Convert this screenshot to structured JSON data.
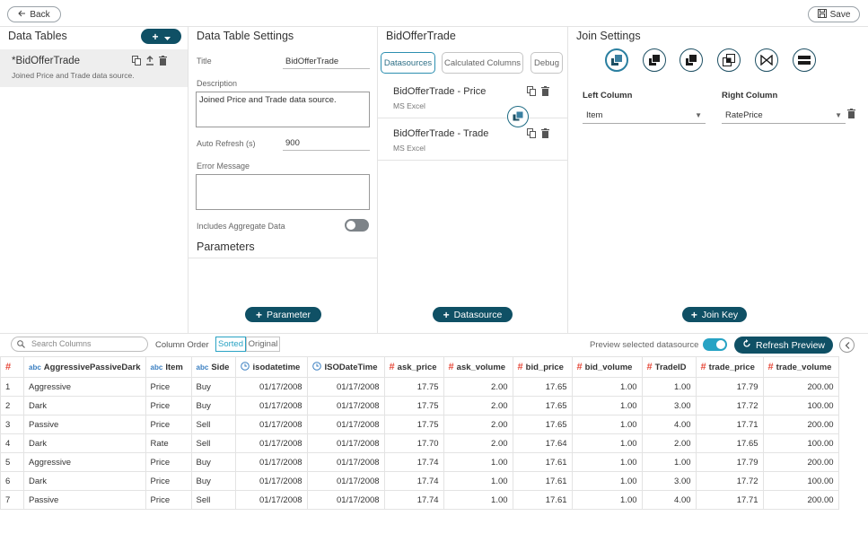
{
  "topbar": {
    "back_label": "Back",
    "save_label": "Save"
  },
  "data_tables": {
    "title": "Data Tables",
    "items": [
      {
        "name": "*BidOfferTrade",
        "description": "Joined Price and Trade data source."
      }
    ]
  },
  "settings": {
    "title": "Data Table Settings",
    "title_label": "Title",
    "title_value": "BidOfferTrade",
    "description_label": "Description",
    "description_value": "Joined Price and Trade data source.",
    "auto_refresh_label": "Auto Refresh (s)",
    "auto_refresh_value": "900",
    "error_label": "Error Message",
    "error_value": "",
    "aggregate_label": "Includes Aggregate Data",
    "aggregate_on": false,
    "parameters_title": "Parameters",
    "parameter_button": "Parameter"
  },
  "datasources_panel": {
    "title": "BidOfferTrade",
    "tabs": [
      "Datasources",
      "Calculated Columns",
      "Debug"
    ],
    "items": [
      {
        "name": "BidOfferTrade - Price",
        "type": "MS Excel"
      },
      {
        "name": "BidOfferTrade - Trade",
        "type": "MS Excel"
      }
    ],
    "add_button": "Datasource"
  },
  "join_settings": {
    "title": "Join Settings",
    "join_types": [
      "inner-join-icon",
      "left-join-icon",
      "right-join-icon",
      "outer-join-icon",
      "bowtie-join-icon",
      "union-icon"
    ],
    "left_column_label": "Left Column",
    "right_column_label": "Right Column",
    "left_value": "Item",
    "right_value": "RatePrice",
    "add_button": "Join Key"
  },
  "toolbar": {
    "search_placeholder": "Search Columns",
    "column_order_label": "Column Order",
    "sorted_label": "Sorted",
    "original_label": "Original",
    "preview_label": "Preview selected datasource",
    "preview_on": true,
    "refresh_label": "Refresh Preview"
  },
  "grid": {
    "columns": [
      {
        "name": "#",
        "type": "index"
      },
      {
        "name": "AggressivePassiveDark",
        "type": "text"
      },
      {
        "name": "Item",
        "type": "text"
      },
      {
        "name": "Side",
        "type": "text"
      },
      {
        "name": "isodatetime",
        "type": "date"
      },
      {
        "name": "ISODateTime",
        "type": "date"
      },
      {
        "name": "ask_price",
        "type": "number"
      },
      {
        "name": "ask_volume",
        "type": "number"
      },
      {
        "name": "bid_price",
        "type": "number"
      },
      {
        "name": "bid_volume",
        "type": "number"
      },
      {
        "name": "TradeID",
        "type": "number"
      },
      {
        "name": "trade_price",
        "type": "number"
      },
      {
        "name": "trade_volume",
        "type": "number"
      }
    ],
    "type_labels": {
      "text": "abc",
      "number": "#"
    },
    "rows": [
      [
        "1",
        "Aggressive",
        "Price",
        "Buy",
        "01/17/2008",
        "01/17/2008",
        "17.75",
        "2.00",
        "17.65",
        "1.00",
        "1.00",
        "17.79",
        "200.00"
      ],
      [
        "2",
        "Dark",
        "Price",
        "Buy",
        "01/17/2008",
        "01/17/2008",
        "17.75",
        "2.00",
        "17.65",
        "1.00",
        "3.00",
        "17.72",
        "100.00"
      ],
      [
        "3",
        "Passive",
        "Price",
        "Sell",
        "01/17/2008",
        "01/17/2008",
        "17.75",
        "2.00",
        "17.65",
        "1.00",
        "4.00",
        "17.71",
        "200.00"
      ],
      [
        "4",
        "Dark",
        "Rate",
        "Sell",
        "01/17/2008",
        "01/17/2008",
        "17.70",
        "2.00",
        "17.64",
        "1.00",
        "2.00",
        "17.65",
        "100.00"
      ],
      [
        "5",
        "Aggressive",
        "Price",
        "Buy",
        "01/17/2008",
        "01/17/2008",
        "17.74",
        "1.00",
        "17.61",
        "1.00",
        "1.00",
        "17.79",
        "200.00"
      ],
      [
        "6",
        "Dark",
        "Price",
        "Buy",
        "01/17/2008",
        "01/17/2008",
        "17.74",
        "1.00",
        "17.61",
        "1.00",
        "3.00",
        "17.72",
        "100.00"
      ],
      [
        "7",
        "Passive",
        "Price",
        "Sell",
        "01/17/2008",
        "01/17/2008",
        "17.74",
        "1.00",
        "17.61",
        "1.00",
        "4.00",
        "17.71",
        "200.00"
      ]
    ]
  }
}
